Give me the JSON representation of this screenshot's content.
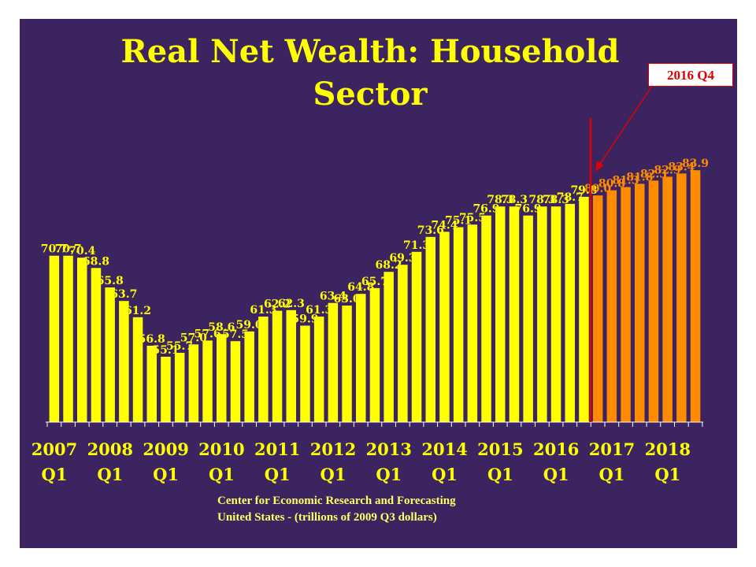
{
  "title": {
    "line1": "Real Net Wealth: Household",
    "line2": "Sector"
  },
  "source": {
    "line1": "Center for Economic Research and Forecasting",
    "line2": "United States - (trillions of 2009 Q3 dollars)"
  },
  "callout": {
    "label": "2016 Q4"
  },
  "colors": {
    "background": "#3b2460",
    "historical_bar": "#ffff00",
    "forecast_bar": "#ff8c00",
    "forecast_label": "#ff8c00",
    "marker": "#e00000"
  },
  "chart_data": {
    "type": "bar",
    "ylim": [
      45,
      90
    ],
    "grid": false,
    "legend": "none",
    "values": [
      70.7,
      70.7,
      70.4,
      68.8,
      65.8,
      63.7,
      61.2,
      56.8,
      55.1,
      55.7,
      57.0,
      57.6,
      58.6,
      57.5,
      59.0,
      61.3,
      62.2,
      62.3,
      59.9,
      61.3,
      63.4,
      63.0,
      64.8,
      65.7,
      68.2,
      69.3,
      71.3,
      73.6,
      74.4,
      75.1,
      75.5,
      76.9,
      78.3,
      78.3,
      76.9,
      78.3,
      78.3,
      78.7,
      79.8,
      80.0,
      80.8,
      81.3,
      81.8,
      82.3,
      82.9,
      83.4,
      83.9
    ],
    "forecast_start_index": 39,
    "x_labels": [
      {
        "year": "2007",
        "quarter": "Q1",
        "index": 0
      },
      {
        "year": "2008",
        "quarter": "Q1",
        "index": 4
      },
      {
        "year": "2009",
        "quarter": "Q1",
        "index": 8
      },
      {
        "year": "2010",
        "quarter": "Q1",
        "index": 12
      },
      {
        "year": "2011",
        "quarter": "Q1",
        "index": 16
      },
      {
        "year": "2012",
        "quarter": "Q1",
        "index": 20
      },
      {
        "year": "2013",
        "quarter": "Q1",
        "index": 24
      },
      {
        "year": "2014",
        "quarter": "Q1",
        "index": 28
      },
      {
        "year": "2015",
        "quarter": "Q1",
        "index": 32
      },
      {
        "year": "2016",
        "quarter": "Q1",
        "index": 36
      },
      {
        "year": "2017",
        "quarter": "Q1",
        "index": 40
      },
      {
        "year": "2018",
        "quarter": "Q1",
        "index": 44
      }
    ]
  }
}
